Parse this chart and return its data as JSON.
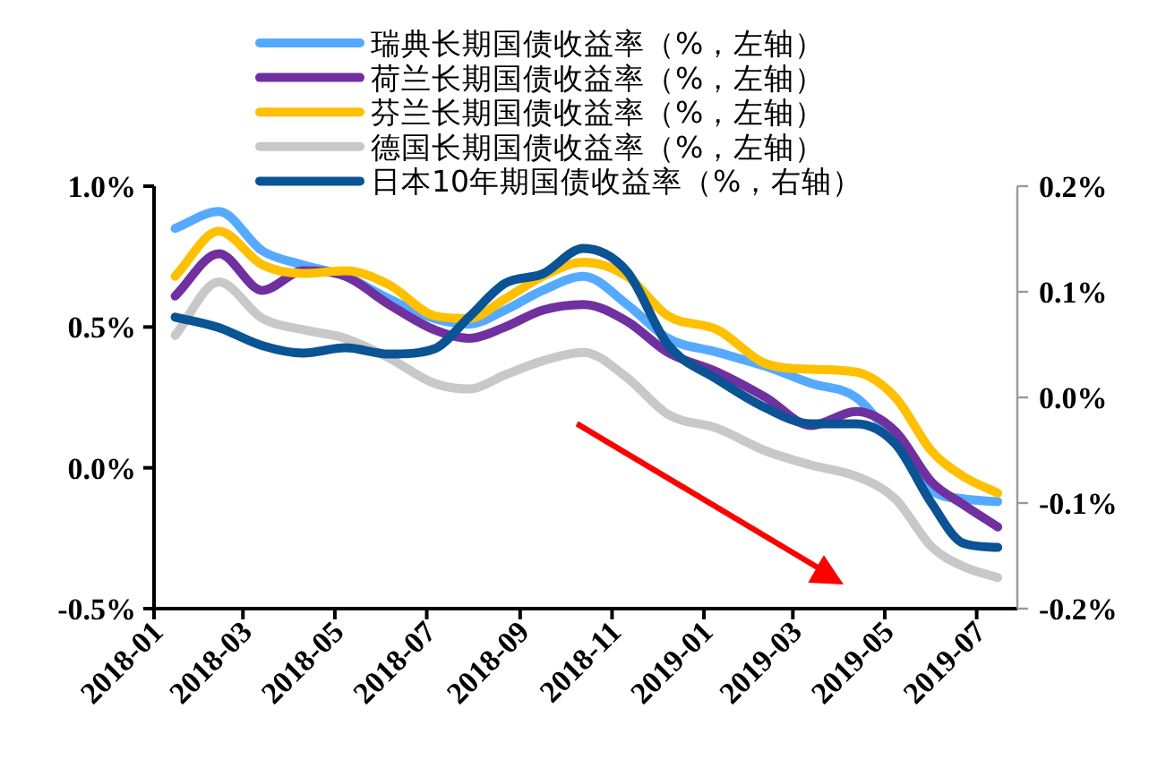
{
  "chart_data": {
    "type": "line",
    "legend": "top",
    "xlim": [
      "2018-01-01",
      "2019-07-28"
    ],
    "xticks": [
      {
        "value": "2018-01",
        "label": "2018-01"
      },
      {
        "value": "2018-03",
        "label": "2018-03"
      },
      {
        "value": "2018-05",
        "label": "2018-05"
      },
      {
        "value": "2018-07",
        "label": "2018-07"
      },
      {
        "value": "2018-09",
        "label": "2018-09"
      },
      {
        "value": "2018-11",
        "label": "2018-11"
      },
      {
        "value": "2019-01",
        "label": "2019-01"
      },
      {
        "value": "2019-03",
        "label": "2019-03"
      },
      {
        "value": "2019-05",
        "label": "2019-05"
      },
      {
        "value": "2019-07",
        "label": "2019-07"
      }
    ],
    "ylim": [
      -0.5,
      1.0
    ],
    "yticks": [
      {
        "value": -0.5,
        "label": "-0.5%"
      },
      {
        "value": 0.0,
        "label": "0.0%"
      },
      {
        "value": 0.5,
        "label": "0.5%"
      },
      {
        "value": 1.0,
        "label": "1.0%"
      }
    ],
    "y2lim": [
      -0.2,
      0.2
    ],
    "y2ticks": [
      {
        "value": -0.2,
        "label": "-0.2%"
      },
      {
        "value": -0.1,
        "label": "-0.1%"
      },
      {
        "value": 0.0,
        "label": "0.0%"
      },
      {
        "value": 0.1,
        "label": "0.1%"
      },
      {
        "value": 0.2,
        "label": "0.2%"
      }
    ],
    "x": [
      "2018-01-15",
      "2018-02-13",
      "2018-03-14",
      "2018-04-10",
      "2018-05-08",
      "2018-06-06",
      "2018-07-06",
      "2018-07-29",
      "2018-08-22",
      "2018-09-16",
      "2018-10-13",
      "2018-11-11",
      "2018-12-08",
      "2019-01-10",
      "2019-02-11",
      "2019-03-13",
      "2019-04-12",
      "2019-05-08",
      "2019-06-01",
      "2019-06-22",
      "2019-07-15"
    ],
    "series": [
      {
        "name": "瑞典长期国债收益率（%，左轴）",
        "color": "#55aaff",
        "values": [
          0.85,
          0.91,
          0.77,
          0.72,
          0.68,
          0.6,
          0.53,
          0.51,
          0.56,
          0.63,
          0.68,
          0.58,
          0.46,
          0.41,
          0.36,
          0.3,
          0.25,
          0.09,
          -0.08,
          -0.11,
          -0.12
        ]
      },
      {
        "name": "荷兰长期国债收益率（%，左轴）",
        "color": "#7030a0",
        "values": [
          0.61,
          0.76,
          0.63,
          0.7,
          0.68,
          0.58,
          0.49,
          0.46,
          0.5,
          0.56,
          0.58,
          0.52,
          0.41,
          0.34,
          0.25,
          0.15,
          0.2,
          0.13,
          -0.05,
          -0.13,
          -0.21
        ]
      },
      {
        "name": "芬兰长期国债收益率（%，左轴）",
        "color": "#ffc000",
        "values": [
          0.68,
          0.84,
          0.72,
          0.69,
          0.7,
          0.65,
          0.54,
          0.53,
          0.6,
          0.68,
          0.73,
          0.68,
          0.54,
          0.49,
          0.37,
          0.35,
          0.34,
          0.25,
          0.06,
          -0.03,
          -0.09
        ]
      },
      {
        "name": "德国长期国债收益率（%，左轴）",
        "color": "#c8c8c8",
        "values": [
          0.47,
          0.66,
          0.53,
          0.49,
          0.46,
          0.39,
          0.3,
          0.28,
          0.33,
          0.38,
          0.41,
          0.32,
          0.19,
          0.14,
          0.06,
          0.01,
          -0.03,
          -0.11,
          -0.28,
          -0.35,
          -0.39
        ]
      },
      {
        "name": "日本10年期国债收益率（%，右轴）",
        "color": "#0a5394",
        "axis": "y2",
        "values": [
          0.076,
          0.066,
          0.049,
          0.042,
          0.047,
          0.041,
          0.046,
          0.076,
          0.108,
          0.117,
          0.141,
          0.119,
          0.05,
          0.017,
          -0.01,
          -0.025,
          -0.025,
          -0.044,
          -0.1,
          -0.138,
          -0.142
        ]
      }
    ]
  }
}
